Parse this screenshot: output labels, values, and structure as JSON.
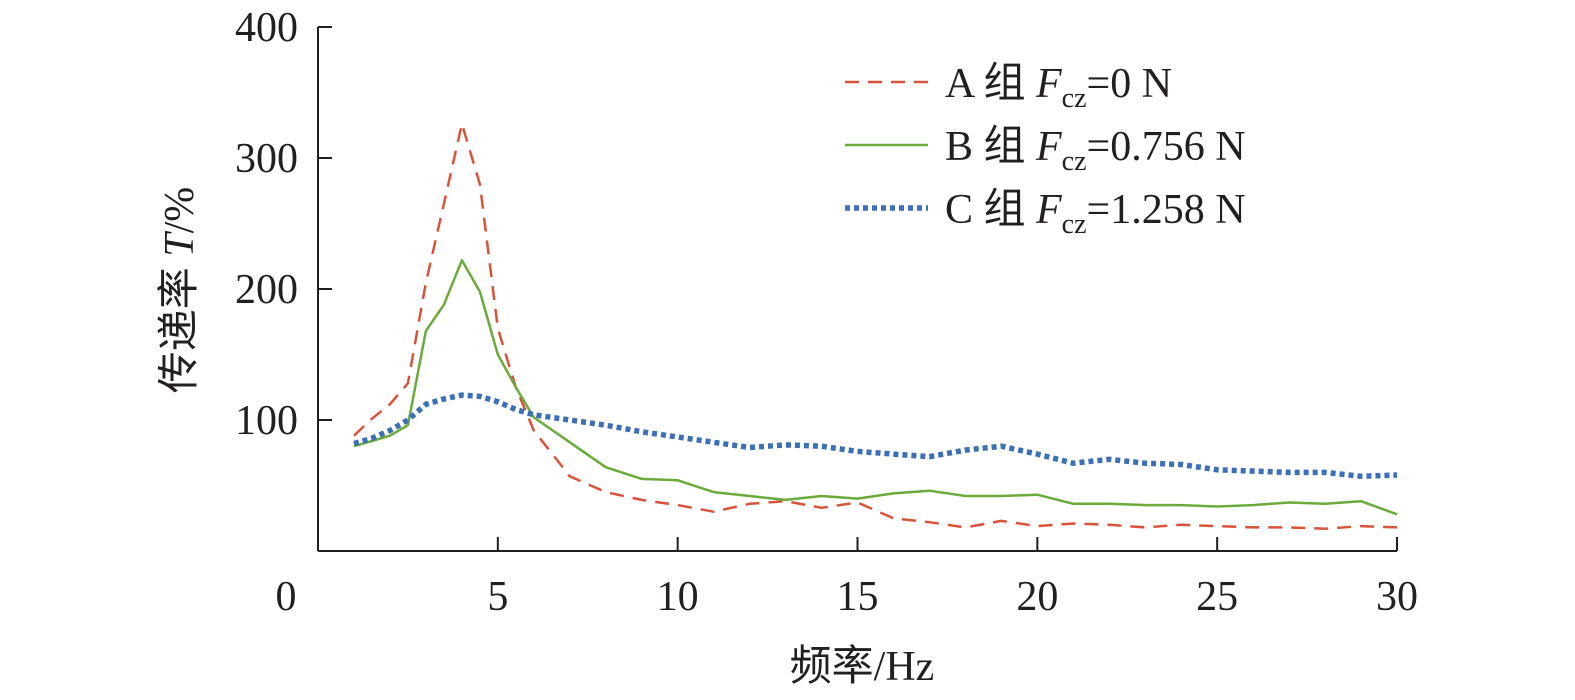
{
  "chart_data": {
    "type": "line",
    "xlabel": "频率/Hz",
    "ylabel_prefix": "传递率 ",
    "ylabel_var": "T",
    "ylabel_unit": "/%",
    "xlim": [
      0,
      30
    ],
    "ylim": [
      0,
      400
    ],
    "x_ticks": [
      0,
      5,
      10,
      15,
      20,
      25,
      30
    ],
    "y_ticks": [
      100,
      200,
      300,
      400
    ],
    "grid": false,
    "legend_position": "top-right",
    "series": [
      {
        "group": "A 组 ",
        "var": "F",
        "sub": "cz",
        "value_text": "=0 N",
        "color": "#d9533b",
        "style": "dashed",
        "x": [
          1,
          1.5,
          2,
          2.5,
          3,
          3.5,
          4,
          4.5,
          5,
          5.5,
          6,
          7,
          8,
          9,
          10,
          11,
          12,
          13,
          14,
          15,
          16,
          17,
          18,
          19,
          20,
          21,
          22,
          23,
          24,
          25,
          26,
          27,
          28,
          29,
          30
        ],
        "y": [
          88,
          101,
          112,
          128,
          205,
          265,
          326,
          280,
          170,
          125,
          92,
          57,
          45,
          39,
          35,
          30,
          36,
          38,
          33,
          37,
          25,
          22,
          18,
          23,
          19,
          21,
          20,
          18,
          20,
          19,
          18,
          18,
          17,
          19,
          18
        ]
      },
      {
        "group": "B 组 ",
        "var": "F",
        "sub": "cz",
        "value_text": "=0.756 N",
        "color": "#6aab3c",
        "style": "solid",
        "x": [
          1,
          1.5,
          2,
          2.5,
          3,
          3.5,
          4,
          4.5,
          5,
          5.5,
          6,
          7,
          8,
          9,
          10,
          11,
          12,
          13,
          14,
          15,
          16,
          17,
          18,
          19,
          20,
          21,
          22,
          23,
          24,
          25,
          26,
          27,
          28,
          29,
          30
        ],
        "y": [
          80,
          84,
          88,
          96,
          168,
          188,
          222,
          198,
          150,
          125,
          102,
          83,
          64,
          55,
          54,
          45,
          42,
          39,
          42,
          40,
          44,
          46,
          42,
          42,
          43,
          36,
          36,
          35,
          35,
          34,
          35,
          37,
          36,
          38,
          28
        ]
      },
      {
        "group": "C 组 ",
        "var": "F",
        "sub": "cz",
        "value_text": "=1.258 N",
        "color": "#3d6fb6",
        "style": "dotted",
        "x": [
          1,
          1.5,
          2,
          2.5,
          3,
          3.5,
          4,
          4.5,
          5,
          5.5,
          6,
          7,
          8,
          9,
          10,
          11,
          12,
          13,
          14,
          15,
          16,
          17,
          18,
          19,
          20,
          21,
          22,
          23,
          24,
          25,
          26,
          27,
          28,
          29,
          30
        ],
        "y": [
          82,
          86,
          92,
          100,
          112,
          116,
          119,
          118,
          114,
          108,
          104,
          100,
          96,
          91,
          87,
          83,
          79,
          81,
          80,
          76,
          74,
          72,
          77,
          80,
          74,
          67,
          70,
          67,
          66,
          62,
          61,
          60,
          60,
          57,
          58
        ]
      }
    ]
  }
}
